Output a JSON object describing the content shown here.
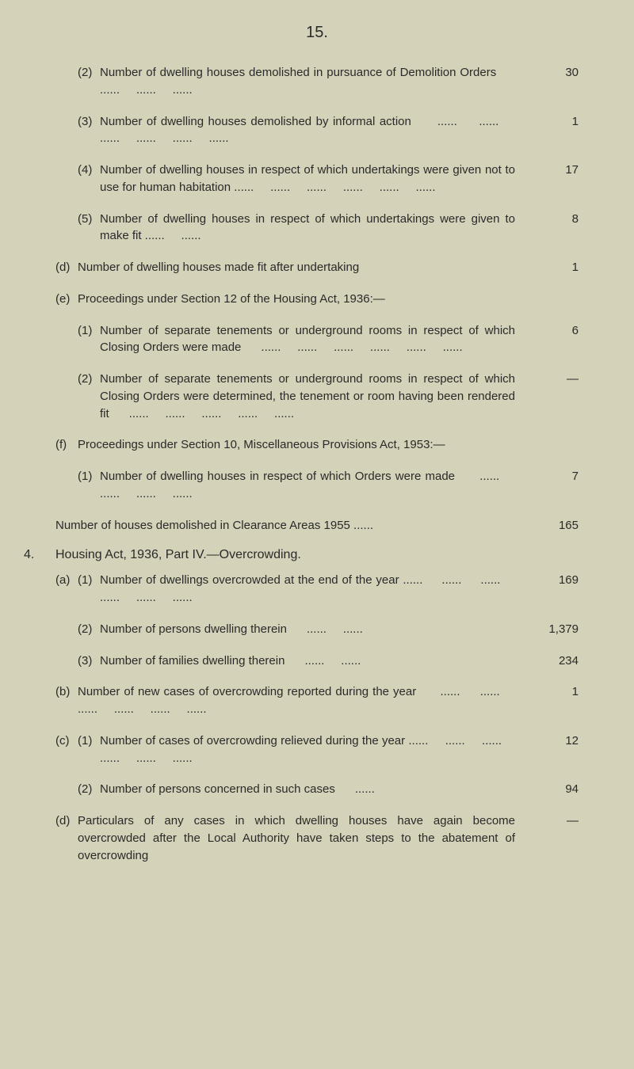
{
  "page_number": "15.",
  "items": [
    {
      "outer": "",
      "inner": "(2)",
      "text": "Number of dwelling houses demolished in pursuance of Demolition Orders      ......     ......     ......",
      "value": "30"
    },
    {
      "outer": "",
      "inner": "(3)",
      "text": "Number of dwelling houses demolished by informal action      ......     ......     ......     ......     ......     ......",
      "value": "1"
    },
    {
      "outer": "",
      "inner": "(4)",
      "text": "Number of dwelling houses in respect of which undertakings were given not to use for human habitation ......     ......     ......     ......     ......     ......",
      "value": "17"
    },
    {
      "outer": "",
      "inner": "(5)",
      "text": "Number of dwelling houses in respect of which undertakings were given to make fit ......     ......",
      "value": "8"
    },
    {
      "outer": "(d)",
      "inner": "",
      "text": "Number of dwelling houses made fit after undertaking",
      "value": "1"
    },
    {
      "outer": "(e)",
      "inner": "",
      "text": "Proceedings under Section 12 of the Housing Act, 1936:—",
      "value": ""
    },
    {
      "outer": "",
      "inner": "(1)",
      "text": "Number of separate tenements or underground rooms in respect of which Closing Orders were made      ......     ......     ......     ......     ......     ......",
      "value": "6"
    },
    {
      "outer": "",
      "inner": "(2)",
      "text": "Number of separate tenements or underground rooms in respect of which Closing Orders were determined, the tenement or room having been rendered fit      ......     ......     ......     ......     ......",
      "value": "—"
    },
    {
      "outer": "(f)",
      "inner": "",
      "text": "Proceedings under Section 10, Miscellaneous Provisions Act, 1953:—",
      "value": ""
    },
    {
      "outer": "",
      "inner": "(1)",
      "text": "Number of dwelling houses in respect of which Orders were made      ......     ......     ......     ......",
      "value": "7"
    },
    {
      "outer": "",
      "inner": "",
      "text": "Number of houses demolished in Clearance Areas 1955 ......",
      "value": "165",
      "flush": true
    }
  ],
  "section4_header": {
    "num": "4.",
    "title": "Housing Act, 1936, Part IV.—Overcrowding."
  },
  "items2": [
    {
      "outer": "(a)",
      "inner": "(1)",
      "text": "Number of dwellings overcrowded at the end of the year ......     ......     ......     ......     ......     ......",
      "value": "169"
    },
    {
      "outer": "",
      "inner": "(2)",
      "text": "Number of persons dwelling therein      ......     ......",
      "value": "1,379"
    },
    {
      "outer": "",
      "inner": "(3)",
      "text": "Number of families dwelling therein      ......     ......",
      "value": "234"
    },
    {
      "outer": "(b)",
      "inner": "",
      "text": "Number of new cases of overcrowding reported during the year      ......     ......     ......     ......     ......     ......",
      "value": "1"
    },
    {
      "outer": "(c)",
      "inner": "(1)",
      "text": "Number of cases of overcrowding relieved during the year ......     ......     ......     ......     ......     ......",
      "value": "12"
    },
    {
      "outer": "",
      "inner": "(2)",
      "text": "Number of persons concerned in such cases      ......",
      "value": "94"
    },
    {
      "outer": "(d)",
      "inner": "",
      "text": "Particulars of any cases in which dwelling houses have again become overcrowded after the Local Authority have taken steps to the abatement of overcrowding",
      "value": "—"
    }
  ]
}
